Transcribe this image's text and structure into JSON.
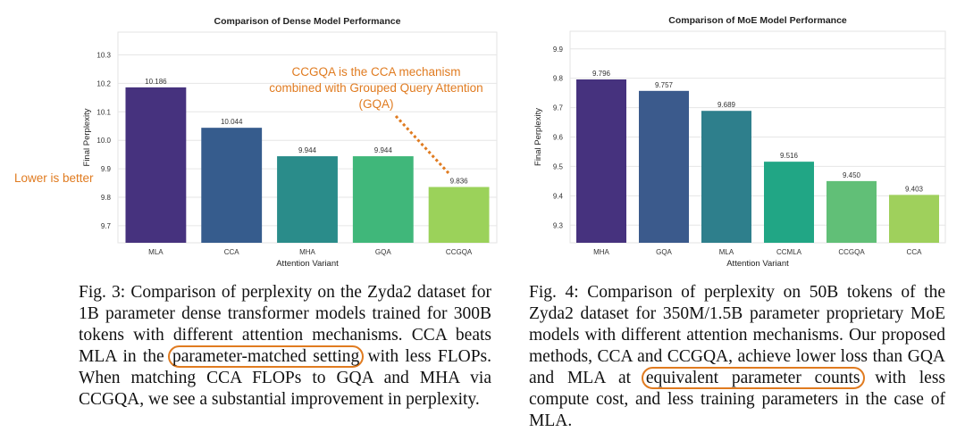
{
  "chart_data": [
    {
      "type": "bar",
      "title": "Comparison of Dense Model Performance",
      "xlabel": "Attention Variant",
      "ylabel": "Final Perplexity",
      "categories": [
        "MLA",
        "CCA",
        "MHA",
        "GQA",
        "CCGQA"
      ],
      "values": [
        10.186,
        10.044,
        9.944,
        9.944,
        9.836
      ],
      "value_labels": [
        "10.186",
        "10.044",
        "9.944",
        "9.944",
        "9.836"
      ],
      "ylim": [
        9.64,
        10.38
      ],
      "yticks": [
        "9.7",
        "9.8",
        "9.9",
        "10.0",
        "10.1",
        "10.2",
        "10.3"
      ],
      "grid": true,
      "colors": [
        "#46327e",
        "#365c8d",
        "#2a8c8a",
        "#40b77a",
        "#9bd25a"
      ]
    },
    {
      "type": "bar",
      "title": "Comparison of MoE Model Performance",
      "xlabel": "Attention Variant",
      "ylabel": "Final Perplexity",
      "categories": [
        "MHA",
        "GQA",
        "MLA",
        "CCMLA",
        "CCGQA",
        "CCA"
      ],
      "values": [
        9.796,
        9.757,
        9.689,
        9.516,
        9.45,
        9.403
      ],
      "value_labels": [
        "9.796",
        "9.757",
        "9.689",
        "9.516",
        "9.450",
        "9.403"
      ],
      "ylim": [
        9.24,
        9.96
      ],
      "yticks": [
        "9.3",
        "9.4",
        "9.5",
        "9.6",
        "9.7",
        "9.8",
        "9.9"
      ],
      "grid": true,
      "colors": [
        "#46327e",
        "#3b5a8c",
        "#2e7f8c",
        "#21a685",
        "#61bf77",
        "#9fd05c"
      ]
    }
  ],
  "annotations": {
    "lower_is_better": "Lower is better",
    "ccgqa_note": "CCGQA is the CCA mechanism combined with Grouped Query Attention (GQA)"
  },
  "captions": {
    "left": {
      "before": "Fig. 3: Comparison of perplexity on the Zyda2 dataset for 1B parameter dense transformer models trained for 300B tokens with different attention mechanisms. CCA beats MLA in the ",
      "highlight": "parameter-matched setting",
      "after": " with less FLOPs. When matching CCA FLOPs to GQA and MHA via CCGQA, we see a substantial improvement in perplexity.",
      "highlight_color": "#e07b20"
    },
    "right": {
      "before": "Fig. 4: Comparison of perplexity on 50B tokens of the Zyda2 dataset for 350M/1.5B parameter proprietary MoE models with different attention mechanisms. Our proposed methods, CCA and CCGQA, achieve lower loss than GQA and MLA at ",
      "highlight": "equivalent parameter counts",
      "after": " with less compute cost, and less training parameters in the case of MLA.",
      "highlight_color": "#e07b20"
    }
  }
}
